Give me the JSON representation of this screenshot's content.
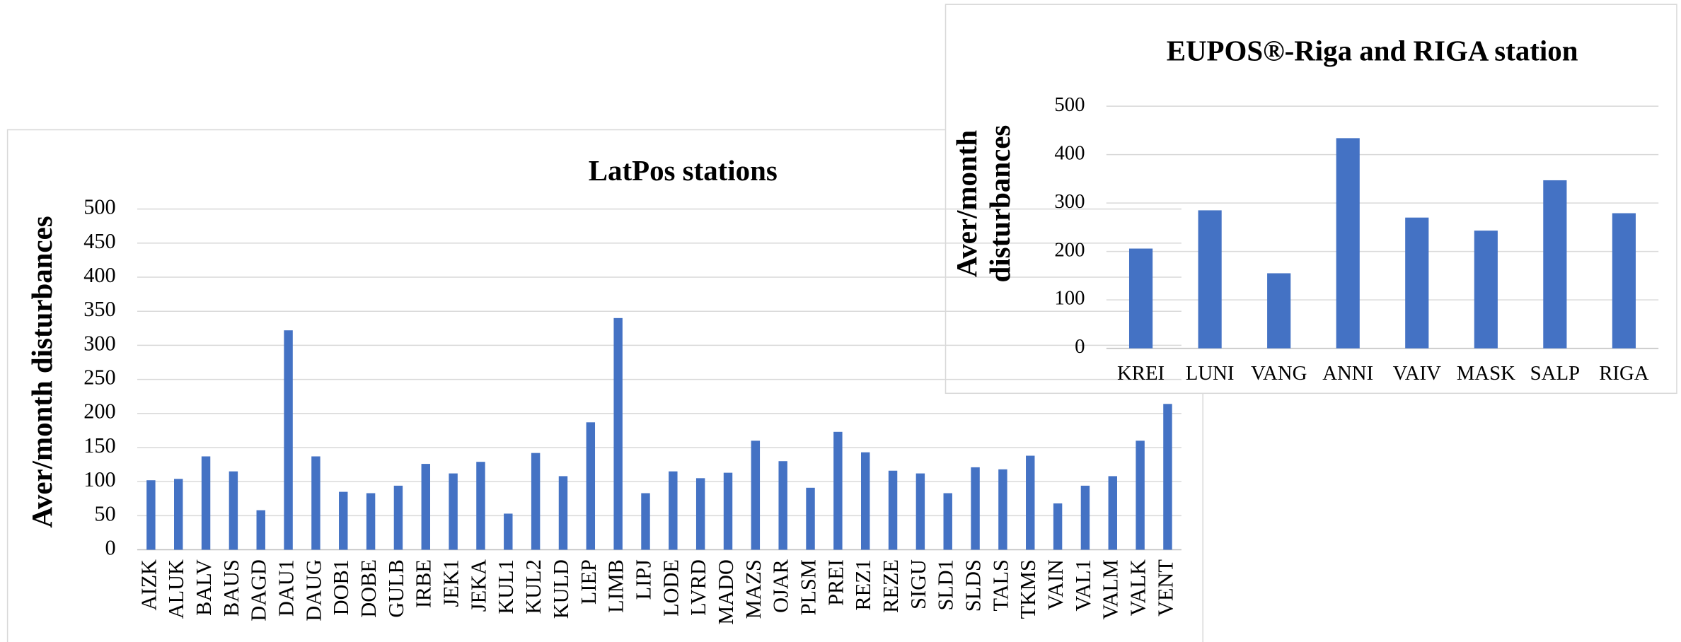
{
  "chart_data": [
    {
      "type": "bar",
      "title": "LatPos stations",
      "y_label": [
        "Aver/month disturbances"
      ],
      "categories": [
        "AIZK",
        "ALUK",
        "BALV",
        "BAUS",
        "DAGD",
        "DAU1",
        "DAUG",
        "DOB1",
        "DOBE",
        "GULB",
        "IRBE",
        "JEK1",
        "JEKA",
        "KUL1",
        "KUL2",
        "KULD",
        "LIEP",
        "LIMB",
        "LIPJ",
        "LODE",
        "LVRD",
        "MADO",
        "MAZS",
        "OJAR",
        "PLSM",
        "PREI",
        "REZ1",
        "REZE",
        "SIGU",
        "SLD1",
        "SLDS",
        "TALS",
        "TKMS",
        "VAIN",
        "VAL1",
        "VALM",
        "VALK",
        "VENT"
      ],
      "values": [
        102,
        104,
        137,
        115,
        58,
        322,
        137,
        85,
        83,
        94,
        126,
        112,
        129,
        53,
        142,
        108,
        187,
        340,
        83,
        115,
        105,
        113,
        160,
        130,
        91,
        173,
        143,
        116,
        112,
        83,
        121,
        118,
        138,
        68,
        94,
        108,
        160,
        214
      ],
      "color": "#4472c4",
      "ylim": [
        0,
        500
      ],
      "yticks": [
        0,
        50,
        100,
        150,
        200,
        250,
        300,
        350,
        400,
        450,
        500
      ],
      "grid": true
    },
    {
      "type": "bar",
      "title": "EUPOS®-Riga and RIGA station",
      "y_label": [
        "Aver/month",
        "disturbances"
      ],
      "categories": [
        "KREI",
        "LUNI",
        "VANG",
        "ANNI",
        "VAIV",
        "MASK",
        "SALP",
        "RIGA"
      ],
      "values": [
        206,
        285,
        155,
        434,
        270,
        243,
        347,
        279
      ],
      "color": "#4472c4",
      "ylim": [
        0,
        500
      ],
      "yticks": [
        0,
        100,
        200,
        300,
        400,
        500
      ],
      "grid": true
    }
  ]
}
